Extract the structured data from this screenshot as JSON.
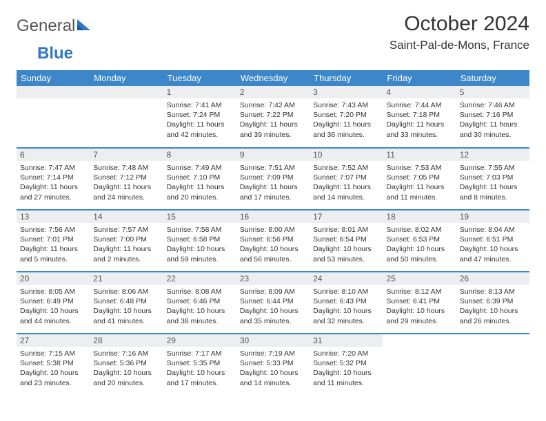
{
  "brand": {
    "part1": "General",
    "part2": "Blue"
  },
  "title": "October 2024",
  "location": "Saint-Pal-de-Mons, France",
  "colors": {
    "header_bg": "#3d87c9",
    "header_text": "#ffffff",
    "daynum_bg": "#eceeef",
    "border": "#3d87c9",
    "text": "#333333",
    "logo_blue": "#2f78c4"
  },
  "day_headers": [
    "Sunday",
    "Monday",
    "Tuesday",
    "Wednesday",
    "Thursday",
    "Friday",
    "Saturday"
  ],
  "weeks": [
    [
      null,
      null,
      {
        "n": "1",
        "sunrise": "7:41 AM",
        "sunset": "7:24 PM",
        "dl": "11 hours and 42 minutes."
      },
      {
        "n": "2",
        "sunrise": "7:42 AM",
        "sunset": "7:22 PM",
        "dl": "11 hours and 39 minutes."
      },
      {
        "n": "3",
        "sunrise": "7:43 AM",
        "sunset": "7:20 PM",
        "dl": "11 hours and 36 minutes."
      },
      {
        "n": "4",
        "sunrise": "7:44 AM",
        "sunset": "7:18 PM",
        "dl": "11 hours and 33 minutes."
      },
      {
        "n": "5",
        "sunrise": "7:46 AM",
        "sunset": "7:16 PM",
        "dl": "11 hours and 30 minutes."
      }
    ],
    [
      {
        "n": "6",
        "sunrise": "7:47 AM",
        "sunset": "7:14 PM",
        "dl": "11 hours and 27 minutes."
      },
      {
        "n": "7",
        "sunrise": "7:48 AM",
        "sunset": "7:12 PM",
        "dl": "11 hours and 24 minutes."
      },
      {
        "n": "8",
        "sunrise": "7:49 AM",
        "sunset": "7:10 PM",
        "dl": "11 hours and 20 minutes."
      },
      {
        "n": "9",
        "sunrise": "7:51 AM",
        "sunset": "7:09 PM",
        "dl": "11 hours and 17 minutes."
      },
      {
        "n": "10",
        "sunrise": "7:52 AM",
        "sunset": "7:07 PM",
        "dl": "11 hours and 14 minutes."
      },
      {
        "n": "11",
        "sunrise": "7:53 AM",
        "sunset": "7:05 PM",
        "dl": "11 hours and 11 minutes."
      },
      {
        "n": "12",
        "sunrise": "7:55 AM",
        "sunset": "7:03 PM",
        "dl": "11 hours and 8 minutes."
      }
    ],
    [
      {
        "n": "13",
        "sunrise": "7:56 AM",
        "sunset": "7:01 PM",
        "dl": "11 hours and 5 minutes."
      },
      {
        "n": "14",
        "sunrise": "7:57 AM",
        "sunset": "7:00 PM",
        "dl": "11 hours and 2 minutes."
      },
      {
        "n": "15",
        "sunrise": "7:58 AM",
        "sunset": "6:58 PM",
        "dl": "10 hours and 59 minutes."
      },
      {
        "n": "16",
        "sunrise": "8:00 AM",
        "sunset": "6:56 PM",
        "dl": "10 hours and 56 minutes."
      },
      {
        "n": "17",
        "sunrise": "8:01 AM",
        "sunset": "6:54 PM",
        "dl": "10 hours and 53 minutes."
      },
      {
        "n": "18",
        "sunrise": "8:02 AM",
        "sunset": "6:53 PM",
        "dl": "10 hours and 50 minutes."
      },
      {
        "n": "19",
        "sunrise": "8:04 AM",
        "sunset": "6:51 PM",
        "dl": "10 hours and 47 minutes."
      }
    ],
    [
      {
        "n": "20",
        "sunrise": "8:05 AM",
        "sunset": "6:49 PM",
        "dl": "10 hours and 44 minutes."
      },
      {
        "n": "21",
        "sunrise": "8:06 AM",
        "sunset": "6:48 PM",
        "dl": "10 hours and 41 minutes."
      },
      {
        "n": "22",
        "sunrise": "8:08 AM",
        "sunset": "6:46 PM",
        "dl": "10 hours and 38 minutes."
      },
      {
        "n": "23",
        "sunrise": "8:09 AM",
        "sunset": "6:44 PM",
        "dl": "10 hours and 35 minutes."
      },
      {
        "n": "24",
        "sunrise": "8:10 AM",
        "sunset": "6:43 PM",
        "dl": "10 hours and 32 minutes."
      },
      {
        "n": "25",
        "sunrise": "8:12 AM",
        "sunset": "6:41 PM",
        "dl": "10 hours and 29 minutes."
      },
      {
        "n": "26",
        "sunrise": "8:13 AM",
        "sunset": "6:39 PM",
        "dl": "10 hours and 26 minutes."
      }
    ],
    [
      {
        "n": "27",
        "sunrise": "7:15 AM",
        "sunset": "5:38 PM",
        "dl": "10 hours and 23 minutes."
      },
      {
        "n": "28",
        "sunrise": "7:16 AM",
        "sunset": "5:36 PM",
        "dl": "10 hours and 20 minutes."
      },
      {
        "n": "29",
        "sunrise": "7:17 AM",
        "sunset": "5:35 PM",
        "dl": "10 hours and 17 minutes."
      },
      {
        "n": "30",
        "sunrise": "7:19 AM",
        "sunset": "5:33 PM",
        "dl": "10 hours and 14 minutes."
      },
      {
        "n": "31",
        "sunrise": "7:20 AM",
        "sunset": "5:32 PM",
        "dl": "10 hours and 11 minutes."
      },
      null,
      null
    ]
  ],
  "labels": {
    "sunrise": "Sunrise: ",
    "sunset": "Sunset: ",
    "daylight": "Daylight: "
  }
}
